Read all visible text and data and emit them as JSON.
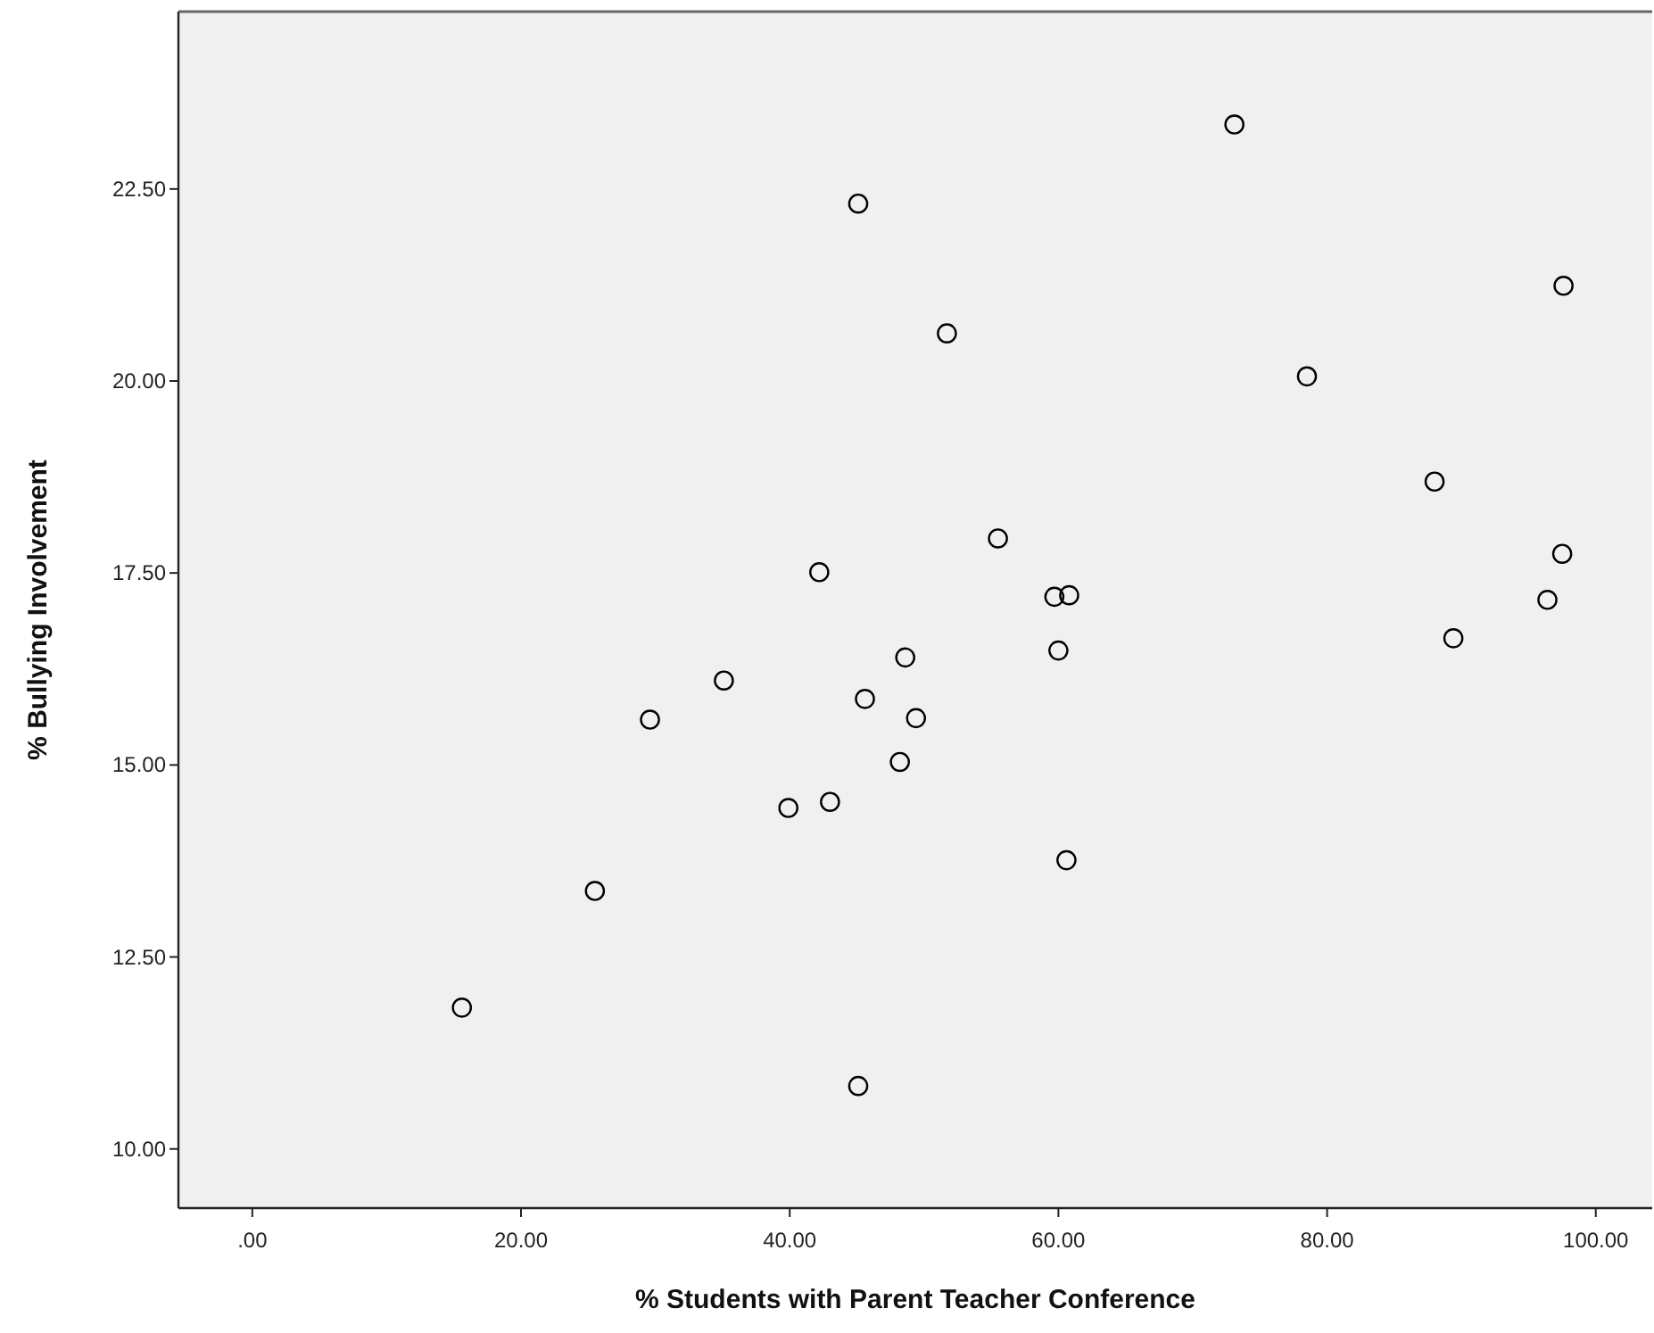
{
  "chart_data": {
    "type": "scatter",
    "xlabel": "% Students with Parent Teacher Conference",
    "ylabel": "% Bullying Involvement",
    "xlim": [
      -5.5,
      104.2
    ],
    "ylim": [
      9.23,
      24.81
    ],
    "xticks": [
      {
        "value": 0,
        "label": ".00"
      },
      {
        "value": 20,
        "label": "20.00"
      },
      {
        "value": 40,
        "label": "40.00"
      },
      {
        "value": 60,
        "label": "60.00"
      },
      {
        "value": 80,
        "label": "80.00"
      },
      {
        "value": 100,
        "label": "100.00"
      }
    ],
    "yticks": [
      {
        "value": 10,
        "label": "10.00"
      },
      {
        "value": 12.5,
        "label": "12.50"
      },
      {
        "value": 15,
        "label": "15.00"
      },
      {
        "value": 17.5,
        "label": "17.50"
      },
      {
        "value": 20,
        "label": "20.00"
      },
      {
        "value": 22.5,
        "label": "22.50"
      }
    ],
    "grid": false,
    "marker": "circle",
    "series": [
      {
        "color": "#000000",
        "x": [
          45.1,
          42.2,
          48.6,
          35.1,
          45.6,
          29.6,
          49.4,
          48.2,
          39.9,
          43.0,
          25.5,
          15.6,
          45.1,
          73.1,
          97.6,
          51.7,
          78.5,
          88.0,
          55.5,
          97.5,
          59.7,
          60.8,
          96.4,
          60.0,
          89.4,
          60.6
        ],
        "values": [
          22.31,
          17.51,
          16.4,
          16.1,
          15.86,
          15.59,
          15.61,
          15.04,
          14.44,
          14.52,
          13.36,
          11.84,
          10.82,
          23.34,
          21.24,
          20.62,
          20.06,
          18.69,
          17.95,
          17.75,
          17.19,
          17.21,
          17.15,
          16.49,
          16.65,
          13.76
        ]
      }
    ]
  }
}
